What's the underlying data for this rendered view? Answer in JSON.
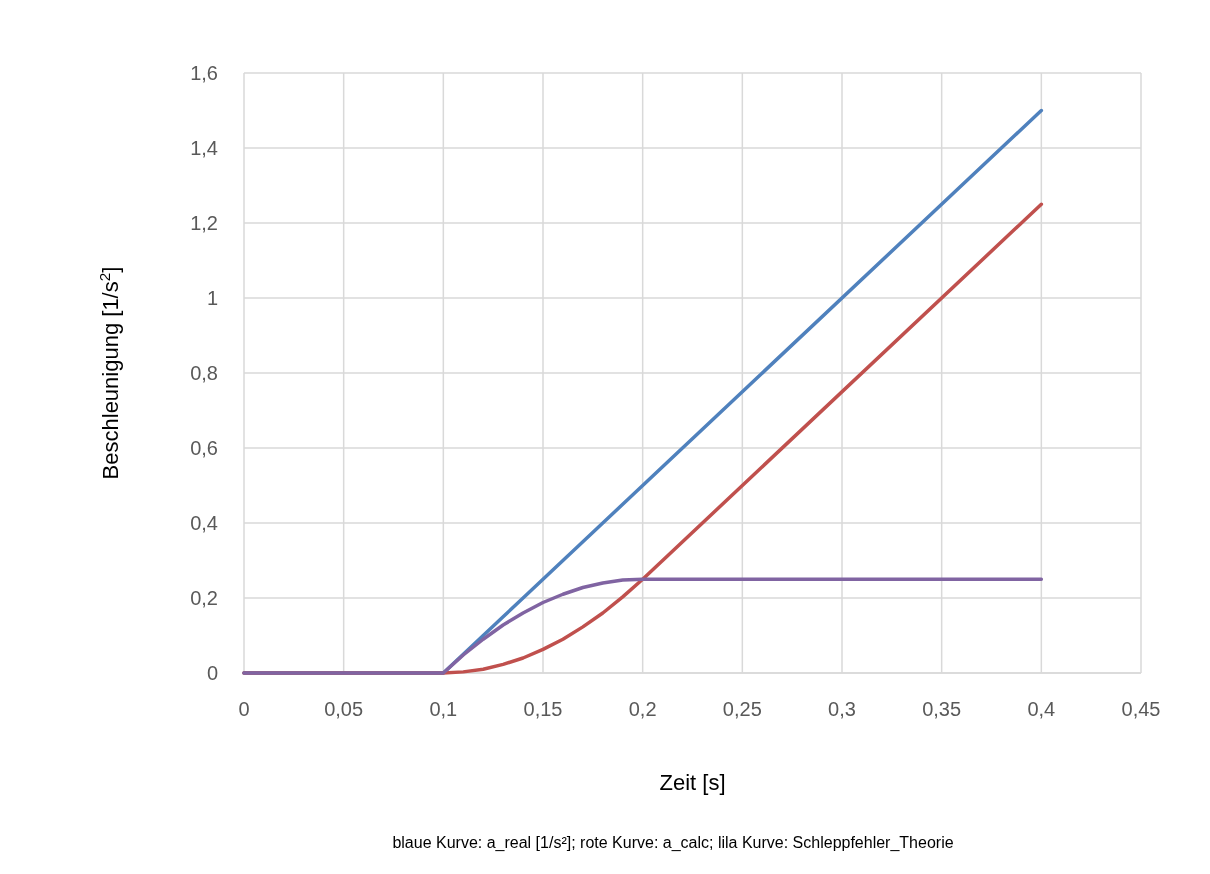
{
  "chart_data": {
    "type": "line",
    "xlabel": "Zeit [s]",
    "ylabel": "Beschleunigung [1/s$^{2}$]",
    "x": [
      0,
      0.1,
      0.11,
      0.12,
      0.13,
      0.14,
      0.15,
      0.16,
      0.17,
      0.18,
      0.19,
      0.2,
      0.4
    ],
    "series": [
      {
        "color": "#4f81bd",
        "values": [
          0,
          0,
          0.05,
          0.1,
          0.15,
          0.2,
          0.25,
          0.3,
          0.35,
          0.4,
          0.45,
          0.5,
          1.5
        ]
      },
      {
        "color": "#c0504d",
        "values": [
          0,
          0,
          0.003,
          0.01,
          0.023,
          0.04,
          0.063,
          0.09,
          0.123,
          0.16,
          0.203,
          0.25,
          1.25
        ]
      },
      {
        "color": "#8064a2",
        "values": [
          0,
          0,
          0.048,
          0.09,
          0.128,
          0.16,
          0.188,
          0.21,
          0.228,
          0.24,
          0.248,
          0.25,
          0.25
        ]
      }
    ],
    "xlim": [
      0,
      0.45
    ],
    "xticks": [
      {
        "value": 0,
        "label": "0"
      },
      {
        "value": 0.05,
        "label": "0,05"
      },
      {
        "value": 0.1,
        "label": "0,1"
      },
      {
        "value": 0.15,
        "label": "0,15"
      },
      {
        "value": 0.2,
        "label": "0,2"
      },
      {
        "value": 0.25,
        "label": "0,25"
      },
      {
        "value": 0.3,
        "label": "0,3"
      },
      {
        "value": 0.35,
        "label": "0,35"
      },
      {
        "value": 0.4,
        "label": "0,4"
      },
      {
        "value": 0.45,
        "label": "0,45"
      }
    ],
    "ylim": [
      0,
      1.6
    ],
    "yticks": [
      {
        "value": 0,
        "label": "0"
      },
      {
        "value": 0.2,
        "label": "0,2"
      },
      {
        "value": 0.4,
        "label": "0,4"
      },
      {
        "value": 0.6,
        "label": "0,6"
      },
      {
        "value": 0.8,
        "label": "0,8"
      },
      {
        "value": 1,
        "label": "1"
      },
      {
        "value": 1.2,
        "label": "1,2"
      },
      {
        "value": 1.4,
        "label": "1,4"
      },
      {
        "value": 1.6,
        "label": "1,6"
      }
    ],
    "grid": true,
    "marker": "none",
    "line_style": "solid",
    "annotations": [
      "blaue Kurve: a_real [1/s²];  rote Kurve: a_calc; lila Kurve: Schleppfehler_Theorie"
    ]
  }
}
